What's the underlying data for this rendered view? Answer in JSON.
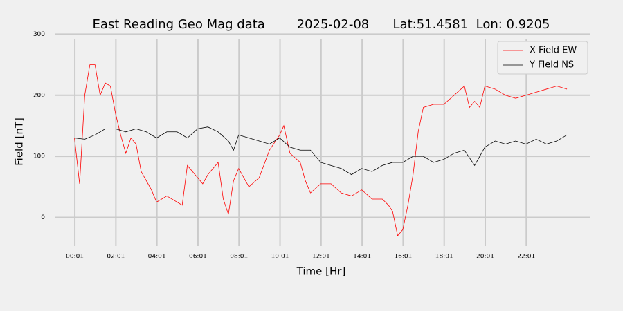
{
  "chart_data": {
    "type": "line",
    "title": "East Reading Geo Mag data        2025-02-08      Lat:51.4581  Lon: 0.9205",
    "x_label": "Time  [Hr]",
    "y_label": "Field  [nT]",
    "xlim": [
      -0.93,
      25.11
    ],
    "ylim": [
      -47,
      305
    ],
    "xticks": [
      {
        "value": 0.0167,
        "label": "00:01"
      },
      {
        "value": 2.0167,
        "label": "02:01"
      },
      {
        "value": 4.0167,
        "label": "04:01"
      },
      {
        "value": 6.0167,
        "label": "06:01"
      },
      {
        "value": 8.0167,
        "label": "08:01"
      },
      {
        "value": 10.0167,
        "label": "10:01"
      },
      {
        "value": 12.0167,
        "label": "12:01"
      },
      {
        "value": 14.0167,
        "label": "14:01"
      },
      {
        "value": 16.0167,
        "label": "16:01"
      },
      {
        "value": 18.0167,
        "label": "18:01"
      },
      {
        "value": 20.0167,
        "label": "20:01"
      },
      {
        "value": 22.0167,
        "label": "22:01"
      }
    ],
    "yticks": [
      0,
      100,
      200,
      300
    ],
    "grid": true,
    "legend": "upper right",
    "series": [
      {
        "name": "X Field EW",
        "color": "#ff0000",
        "x": [
          0,
          0.25,
          0.5,
          0.75,
          1.0,
          1.25,
          1.5,
          1.75,
          2.0,
          2.25,
          2.5,
          2.75,
          3.0,
          3.25,
          3.5,
          3.75,
          4.0,
          4.5,
          5.0,
          5.25,
          5.5,
          6.0,
          6.25,
          6.5,
          7.0,
          7.25,
          7.5,
          7.75,
          8.0,
          8.5,
          9.0,
          9.5,
          10.0,
          10.2,
          10.5,
          11.0,
          11.25,
          11.5,
          12.0,
          12.5,
          13.0,
          13.5,
          14.0,
          14.5,
          15.0,
          15.3,
          15.5,
          15.75,
          16.0,
          16.25,
          16.5,
          16.75,
          17.0,
          17.5,
          18.0,
          18.5,
          19.0,
          19.25,
          19.5,
          19.75,
          20.0,
          20.5,
          21.0,
          21.5,
          22.0,
          22.5,
          23.0,
          23.5,
          24.0
        ],
        "values": [
          130,
          55,
          200,
          250,
          250,
          200,
          220,
          215,
          170,
          135,
          105,
          130,
          120,
          75,
          60,
          45,
          25,
          35,
          25,
          20,
          85,
          65,
          55,
          70,
          90,
          30,
          5,
          60,
          80,
          50,
          65,
          110,
          135,
          150,
          105,
          90,
          60,
          40,
          55,
          55,
          40,
          35,
          45,
          30,
          30,
          20,
          10,
          -30,
          -20,
          20,
          70,
          140,
          180,
          185,
          185,
          200,
          215,
          180,
          190,
          180,
          215,
          210,
          200,
          195,
          200,
          205,
          210,
          215,
          210
        ]
      },
      {
        "name": "Y Field NS",
        "color": "#000000",
        "x": [
          0,
          0.5,
          1,
          1.5,
          2,
          2.5,
          3,
          3.5,
          4,
          4.5,
          5,
          5.5,
          6,
          6.5,
          7,
          7.5,
          7.75,
          8,
          8.5,
          9,
          9.5,
          10,
          10.5,
          11,
          11.5,
          12,
          12.5,
          13,
          13.5,
          14,
          14.5,
          15,
          15.5,
          16,
          16.5,
          17,
          17.5,
          18,
          18.5,
          19,
          19.5,
          20,
          20.5,
          21,
          21.5,
          22,
          22.5,
          23,
          23.5,
          24
        ],
        "values": [
          130,
          128,
          135,
          145,
          145,
          140,
          145,
          140,
          130,
          140,
          140,
          130,
          145,
          148,
          140,
          125,
          110,
          135,
          130,
          125,
          120,
          130,
          115,
          110,
          110,
          90,
          85,
          80,
          70,
          80,
          75,
          85,
          90,
          90,
          100,
          100,
          90,
          95,
          105,
          110,
          85,
          115,
          125,
          120,
          125,
          120,
          128,
          120,
          125,
          135
        ]
      }
    ]
  }
}
